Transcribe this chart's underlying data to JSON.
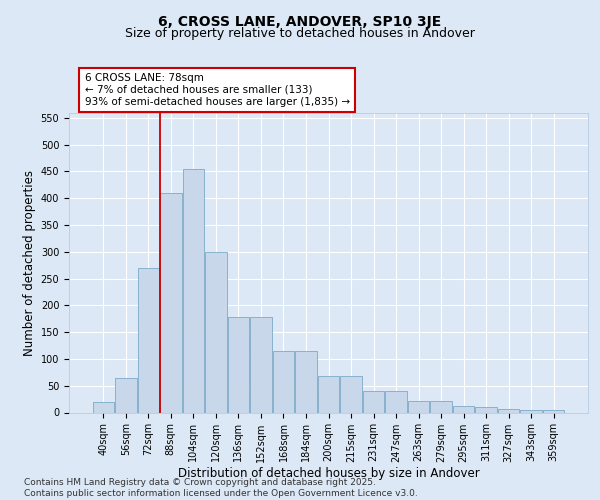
{
  "title": "6, CROSS LANE, ANDOVER, SP10 3JE",
  "subtitle": "Size of property relative to detached houses in Andover",
  "xlabel": "Distribution of detached houses by size in Andover",
  "ylabel": "Number of detached properties",
  "categories": [
    "40sqm",
    "56sqm",
    "72sqm",
    "88sqm",
    "104sqm",
    "120sqm",
    "136sqm",
    "152sqm",
    "168sqm",
    "184sqm",
    "200sqm",
    "215sqm",
    "231sqm",
    "247sqm",
    "263sqm",
    "279sqm",
    "295sqm",
    "311sqm",
    "327sqm",
    "343sqm",
    "359sqm"
  ],
  "bar_values": [
    20,
    65,
    270,
    410,
    455,
    300,
    178,
    178,
    115,
    115,
    68,
    68,
    40,
    40,
    22,
    22,
    13,
    10,
    6,
    5,
    4
  ],
  "bar_color": "#c8d8ea",
  "bar_edgecolor": "#7aaac8",
  "vline_x": 2.5,
  "vline_color": "#cc0000",
  "annotation_text": "6 CROSS LANE: 78sqm\n← 7% of detached houses are smaller (133)\n93% of semi-detached houses are larger (1,835) →",
  "annotation_box_edgecolor": "#cc0000",
  "ylim": [
    0,
    560
  ],
  "yticks": [
    0,
    50,
    100,
    150,
    200,
    250,
    300,
    350,
    400,
    450,
    500,
    550
  ],
  "footer": "Contains HM Land Registry data © Crown copyright and database right 2025.\nContains public sector information licensed under the Open Government Licence v3.0.",
  "background_color": "#dce8f5",
  "plot_bg_color": "#dce8f5",
  "grid_color": "#ffffff",
  "title_fontsize": 10,
  "subtitle_fontsize": 9,
  "axis_label_fontsize": 8.5,
  "tick_fontsize": 7,
  "footer_fontsize": 6.5
}
